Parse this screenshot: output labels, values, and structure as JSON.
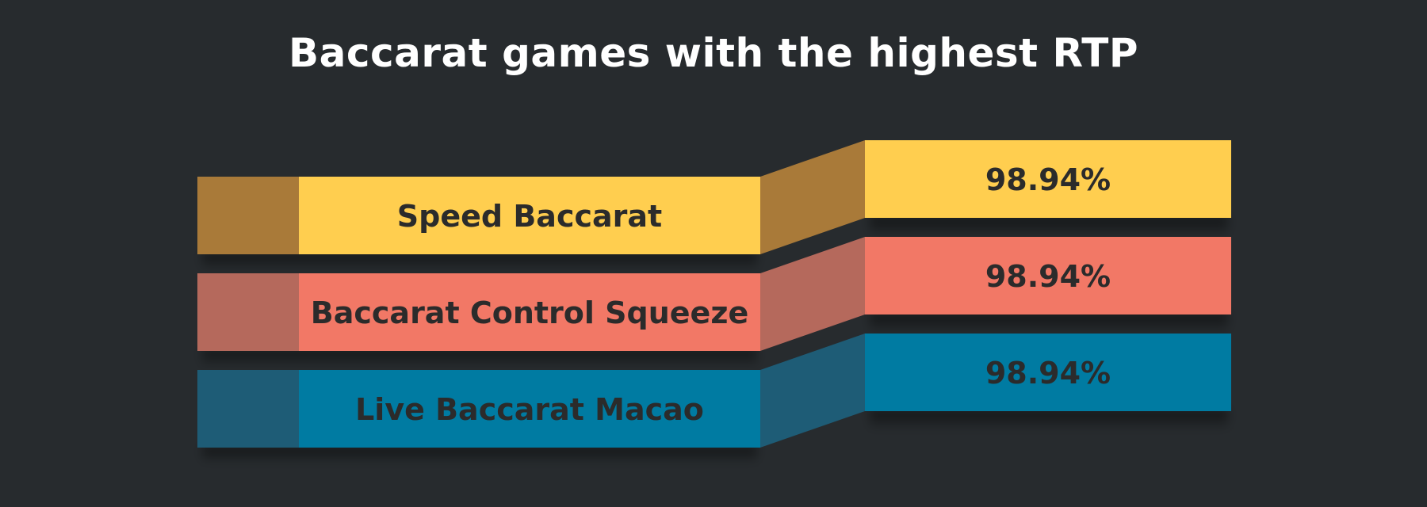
{
  "title": "Baccarat games with the highest RTP",
  "chart_data": {
    "type": "bar",
    "title": "Baccarat games with the highest RTP",
    "categories": [
      "Speed Baccarat",
      "Baccarat Control Squeeze",
      "Live Baccarat Macao"
    ],
    "values": [
      98.94,
      98.94,
      98.94
    ],
    "value_labels": [
      "98.94%",
      "98.94%",
      "98.94%"
    ],
    "unit": "%",
    "colors": {
      "Speed Baccarat": {
        "front": "#ffce4f",
        "side": "#a97a39"
      },
      "Baccarat Control Squeeze": {
        "front": "#f27866",
        "side": "#b5695c"
      },
      "Live Baccarat Macao": {
        "front": "#007ba2",
        "side": "#1e5c76"
      }
    },
    "background": "#272b2e"
  }
}
